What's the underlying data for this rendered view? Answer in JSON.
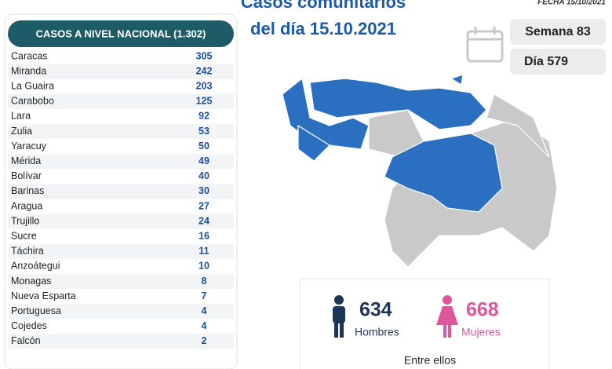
{
  "header": {
    "title_line1": "Casos comunitarios",
    "title_line2": "del día 15.10.2021",
    "date": "FECHA 15/10/2021"
  },
  "table": {
    "title": "CASOS A NIVEL NACIONAL (1.302)",
    "rows": [
      [
        "Caracas",
        305
      ],
      [
        "Miranda",
        242
      ],
      [
        "La Guaira",
        203
      ],
      [
        "Carabobo",
        125
      ],
      [
        "Lara",
        92
      ],
      [
        "Zulia",
        53
      ],
      [
        "Yaracuy",
        50
      ],
      [
        "Mérida",
        49
      ],
      [
        "Bolívar",
        40
      ],
      [
        "Barinas",
        30
      ],
      [
        "Aragua",
        27
      ],
      [
        "Trujillo",
        24
      ],
      [
        "Sucre",
        16
      ],
      [
        "Táchira",
        11
      ],
      [
        "Anzoátegui",
        10
      ],
      [
        "Monagas",
        8
      ],
      [
        "Nueva Esparta",
        7
      ],
      [
        "Portuguesa",
        4
      ],
      [
        "Cojedes",
        4
      ],
      [
        "Falcón",
        2
      ]
    ]
  },
  "week": "Semana 83",
  "day": "Día 579",
  "gender": {
    "men_value": 634,
    "men_label": "Hombres",
    "women_value": 668,
    "women_label": "Mujeres",
    "note": "Entre ellos"
  }
}
